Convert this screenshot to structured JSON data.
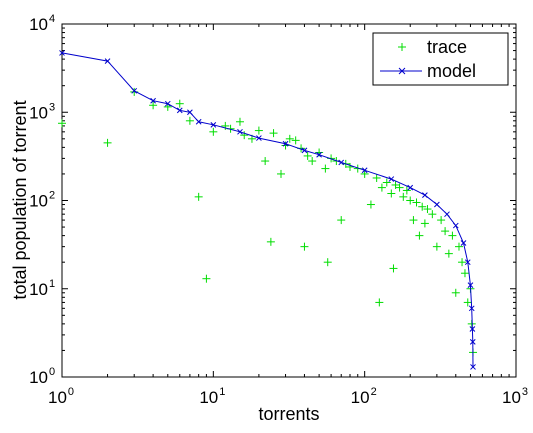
{
  "chart_data": {
    "type": "scatter",
    "title": "",
    "xlabel": "torrents",
    "ylabel": "total population of torrent",
    "xscale": "log",
    "yscale": "log",
    "xlim": [
      1,
      1000
    ],
    "ylim": [
      1,
      10000
    ],
    "x_ticks": [
      {
        "base": "10",
        "exp": "0"
      },
      {
        "base": "10",
        "exp": "1"
      },
      {
        "base": "10",
        "exp": "2"
      },
      {
        "base": "10",
        "exp": "3"
      }
    ],
    "y_ticks": [
      {
        "base": "10",
        "exp": "0"
      },
      {
        "base": "10",
        "exp": "1"
      },
      {
        "base": "10",
        "exp": "2"
      },
      {
        "base": "10",
        "exp": "3"
      },
      {
        "base": "10",
        "exp": "4"
      }
    ],
    "grid": false,
    "legend_position": "top-right",
    "series": [
      {
        "name": "trace",
        "color": "#00dd00",
        "marker": "+",
        "points": [
          [
            1,
            750
          ],
          [
            2,
            450
          ],
          [
            3,
            1700
          ],
          [
            4,
            1200
          ],
          [
            5,
            1150
          ],
          [
            6,
            1250
          ],
          [
            7,
            800
          ],
          [
            8,
            110
          ],
          [
            9,
            13
          ],
          [
            10,
            600
          ],
          [
            12,
            700
          ],
          [
            13,
            650
          ],
          [
            15,
            780
          ],
          [
            16,
            550
          ],
          [
            18,
            500
          ],
          [
            20,
            620
          ],
          [
            22,
            280
          ],
          [
            24,
            34
          ],
          [
            25,
            580
          ],
          [
            28,
            200
          ],
          [
            30,
            420
          ],
          [
            32,
            500
          ],
          [
            35,
            480
          ],
          [
            38,
            390
          ],
          [
            40,
            30
          ],
          [
            42,
            320
          ],
          [
            45,
            280
          ],
          [
            50,
            350
          ],
          [
            55,
            230
          ],
          [
            57,
            20
          ],
          [
            60,
            300
          ],
          [
            65,
            280
          ],
          [
            70,
            60
          ],
          [
            75,
            260
          ],
          [
            80,
            240
          ],
          [
            90,
            230
          ],
          [
            100,
            200
          ],
          [
            110,
            90
          ],
          [
            120,
            180
          ],
          [
            125,
            7
          ],
          [
            130,
            140
          ],
          [
            140,
            160
          ],
          [
            150,
            120
          ],
          [
            155,
            17
          ],
          [
            160,
            150
          ],
          [
            170,
            140
          ],
          [
            180,
            110
          ],
          [
            190,
            130
          ],
          [
            200,
            100
          ],
          [
            210,
            60
          ],
          [
            220,
            95
          ],
          [
            230,
            40
          ],
          [
            240,
            85
          ],
          [
            250,
            55
          ],
          [
            260,
            80
          ],
          [
            280,
            70
          ],
          [
            300,
            30
          ],
          [
            320,
            60
          ],
          [
            340,
            45
          ],
          [
            360,
            25
          ],
          [
            380,
            40
          ],
          [
            400,
            9
          ],
          [
            420,
            30
          ],
          [
            440,
            20
          ],
          [
            460,
            15
          ],
          [
            480,
            7
          ],
          [
            500,
            10
          ],
          [
            510,
            4
          ],
          [
            520,
            1.9
          ]
        ]
      },
      {
        "name": "model",
        "color": "#0000cc",
        "marker": "x",
        "points": [
          [
            1,
            4700
          ],
          [
            2,
            3800
          ],
          [
            3,
            1750
          ],
          [
            4,
            1350
          ],
          [
            5,
            1250
          ],
          [
            6,
            1050
          ],
          [
            7,
            1000
          ],
          [
            8,
            780
          ],
          [
            10,
            720
          ],
          [
            15,
            600
          ],
          [
            20,
            510
          ],
          [
            30,
            440
          ],
          [
            40,
            370
          ],
          [
            50,
            330
          ],
          [
            70,
            270
          ],
          [
            100,
            220
          ],
          [
            150,
            175
          ],
          [
            200,
            140
          ],
          [
            250,
            115
          ],
          [
            300,
            90
          ],
          [
            350,
            70
          ],
          [
            400,
            52
          ],
          [
            450,
            33
          ],
          [
            480,
            20
          ],
          [
            500,
            11
          ],
          [
            510,
            6
          ],
          [
            515,
            3.5
          ],
          [
            518,
            2.5
          ],
          [
            520,
            1.3
          ]
        ]
      }
    ]
  }
}
